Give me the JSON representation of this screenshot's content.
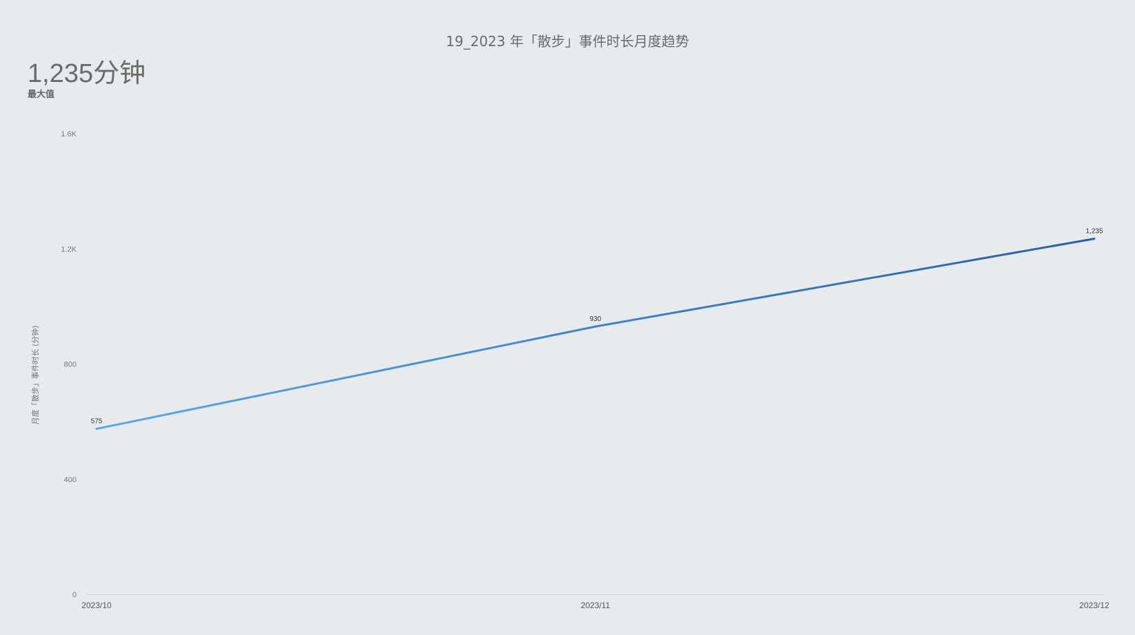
{
  "title": "19_2023 年「散步」事件时长月度趋势",
  "kpi": {
    "value": "1,235分钟",
    "label": "最大值"
  },
  "colors": {
    "background": "#e7ebee",
    "line_start": "#5aaae6",
    "line_end": "#2b5ea9",
    "axis": "#cfd5da"
  },
  "chart_data": {
    "type": "line",
    "title": "19_2023 年「散步」事件时长月度趋势",
    "xlabel": "",
    "ylabel": "月度「散步」事件时长 (分钟)",
    "categories": [
      "2023/10",
      "2023/11",
      "2023/12"
    ],
    "series": [
      {
        "values": [
          575,
          930,
          1235
        ],
        "data_labels": [
          "575",
          "930",
          "1,235"
        ]
      }
    ],
    "yticks": [
      0,
      400,
      800,
      1200,
      1600
    ],
    "ytick_labels": [
      "0",
      "400",
      "800",
      "1.2K",
      "1.6K"
    ],
    "ylim": [
      0,
      1600
    ],
    "grid": false,
    "legend": "none"
  }
}
